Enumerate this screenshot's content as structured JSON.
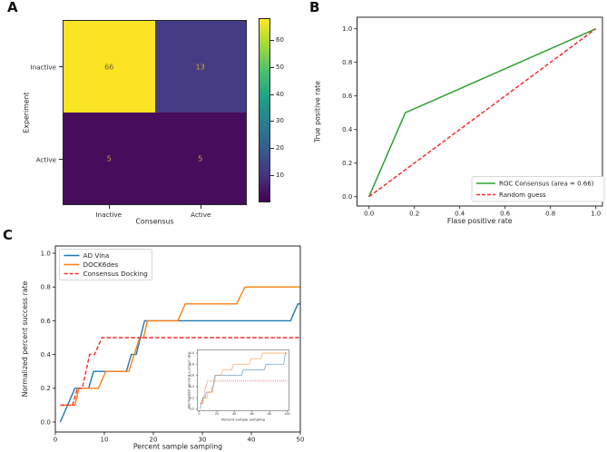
{
  "figure": {
    "panel_labels": [
      "A",
      "B",
      "C"
    ],
    "background": "#ffffff",
    "text_color": "#262626",
    "spine_color": "#262626"
  },
  "chart_data": [
    {
      "panel": "A",
      "type": "heatmap",
      "xlabel": "Consensus",
      "ylabel": "Experiment",
      "x_categories": [
        "Inactive",
        "Active"
      ],
      "y_categories": [
        "Inactive",
        "Active"
      ],
      "values": [
        [
          66,
          13
        ],
        [
          5,
          5
        ]
      ],
      "cell_colors": [
        [
          "#fbe423",
          "#443c84"
        ],
        [
          "#450d5c",
          "#450d5c"
        ]
      ],
      "value_text_colors": [
        [
          "#6b6333",
          "#d8ab2d"
        ],
        [
          "#d8ab2d",
          "#d8ab2d"
        ]
      ],
      "colorbar": {
        "vmin": 0,
        "vmax": 68,
        "tick_values": [
          10,
          20,
          30,
          40,
          50,
          60
        ],
        "tick_labels": [
          "10",
          "20",
          "30",
          "40",
          "50",
          "60"
        ],
        "gradient_bottom_to_top": [
          "#440154",
          "#46327e",
          "#365c8d",
          "#277f8e",
          "#1fa187",
          "#4ac16d",
          "#a0da39",
          "#fde725"
        ]
      }
    },
    {
      "panel": "B",
      "type": "line",
      "xlabel": "Flase positive rate",
      "ylabel": "True positive rate",
      "xtick_values": [
        0,
        0.2,
        0.4,
        0.6,
        0.8,
        1.0
      ],
      "xtick_labels": [
        "0.0",
        "0.2",
        "0.4",
        "0.6",
        "0.8",
        "1.0"
      ],
      "ytick_values": [
        0,
        0.2,
        0.4,
        0.6,
        0.8,
        1.0
      ],
      "ytick_labels": [
        "0.0",
        "0.2",
        "0.4",
        "0.6",
        "0.8",
        "1.0"
      ],
      "legend_position": "lower right",
      "series": [
        {
          "name": "ROC Consensus (area = 0.66)",
          "color": "#2ca02c",
          "style": "solid",
          "points": [
            [
              0,
              0
            ],
            [
              0.16,
              0.5
            ],
            [
              1,
              1
            ]
          ]
        },
        {
          "name": "Random guess",
          "color": "#fb2b2b",
          "style": "dashed",
          "points": [
            [
              0,
              0
            ],
            [
              1,
              1
            ]
          ]
        }
      ]
    },
    {
      "panel": "C",
      "type": "line",
      "xlabel": "Percent sample sampling",
      "ylabel": "Normalized percent success rate",
      "xtick_values": [
        0,
        10,
        20,
        30,
        40,
        50
      ],
      "xtick_labels": [
        "0",
        "10",
        "20",
        "30",
        "40",
        "50"
      ],
      "ytick_values": [
        0,
        0.2,
        0.4,
        0.6,
        0.8,
        1.0
      ],
      "ytick_labels": [
        "0.0",
        "0.2",
        "0.4",
        "0.6",
        "0.8",
        "1.0"
      ],
      "legend_position": "upper left",
      "series": [
        {
          "name": "AD Vina",
          "color": "#1f77b4",
          "style": "solid",
          "points": [
            [
              1,
              0
            ],
            [
              4,
              0.2
            ],
            [
              6.8,
              0.2
            ],
            [
              7.8,
              0.3
            ],
            [
              14.5,
              0.3
            ],
            [
              15.5,
              0.4
            ],
            [
              16.5,
              0.4
            ],
            [
              18.2,
              0.6
            ],
            [
              48,
              0.6
            ],
            [
              49.5,
              0.7
            ],
            [
              50,
              0.7
            ]
          ]
        },
        {
          "name": "DOCK6des",
          "color": "#ff7f0e",
          "style": "solid",
          "points": [
            [
              1,
              0.1
            ],
            [
              4,
              0.1
            ],
            [
              4.8,
              0.2
            ],
            [
              8.8,
              0.2
            ],
            [
              10.3,
              0.3
            ],
            [
              15,
              0.3
            ],
            [
              17.2,
              0.5
            ],
            [
              18,
              0.5
            ],
            [
              18.8,
              0.6
            ],
            [
              25,
              0.6
            ],
            [
              26.5,
              0.7
            ],
            [
              37,
              0.7
            ],
            [
              38.7,
              0.8
            ],
            [
              50,
              0.8
            ]
          ]
        },
        {
          "name": "Consensus Docking",
          "color": "#fb2b2b",
          "style": "dashed",
          "points": [
            [
              1,
              0.1
            ],
            [
              3.5,
              0.1
            ],
            [
              4.5,
              0.2
            ],
            [
              5.5,
              0.2
            ],
            [
              7,
              0.4
            ],
            [
              8,
              0.4
            ],
            [
              9.5,
              0.5
            ],
            [
              50,
              0.5
            ]
          ]
        }
      ],
      "inset": {
        "xlabel": "Percent sample sampling",
        "ylabel": "Normalized percent success rate",
        "xtick_values": [
          0,
          20,
          40,
          60,
          80,
          100
        ],
        "xtick_labels": [
          "0",
          "20",
          "40",
          "60",
          "80",
          "100"
        ],
        "ytick_values": [
          0,
          0.2,
          0.4,
          0.6,
          0.8,
          1.0
        ],
        "ytick_labels": [
          "0.0",
          "0.2",
          "0.4",
          "0.6",
          "0.8",
          "1.0"
        ],
        "series": [
          {
            "name": "AD Vina",
            "color": "#1f77b4",
            "style": "solid",
            "opacity": 0.55,
            "points": [
              [
                1,
                0
              ],
              [
                4,
                0.2
              ],
              [
                7,
                0.2
              ],
              [
                8,
                0.3
              ],
              [
                14,
                0.3
              ],
              [
                15,
                0.4
              ],
              [
                16,
                0.4
              ],
              [
                18,
                0.6
              ],
              [
                48,
                0.6
              ],
              [
                50,
                0.7
              ],
              [
                74,
                0.7
              ],
              [
                76,
                0.8
              ],
              [
                96,
                0.8
              ],
              [
                98,
                1.0
              ],
              [
                100,
                1.0
              ]
            ]
          },
          {
            "name": "DOCK6des",
            "color": "#ff7f0e",
            "style": "solid",
            "opacity": 0.55,
            "points": [
              [
                1,
                0.1
              ],
              [
                4,
                0.1
              ],
              [
                5,
                0.2
              ],
              [
                9,
                0.2
              ],
              [
                10,
                0.3
              ],
              [
                15,
                0.3
              ],
              [
                17,
                0.5
              ],
              [
                19,
                0.6
              ],
              [
                25,
                0.6
              ],
              [
                27,
                0.7
              ],
              [
                37,
                0.7
              ],
              [
                39,
                0.8
              ],
              [
                57,
                0.8
              ],
              [
                59,
                0.9
              ],
              [
                70,
                0.9
              ],
              [
                72,
                1.0
              ],
              [
                100,
                1.0
              ]
            ]
          },
          {
            "name": "Consensus Docking",
            "color": "#fb2b2b",
            "style": "dotted",
            "opacity": 0.9,
            "points": [
              [
                1,
                0.1
              ],
              [
                3.5,
                0.1
              ],
              [
                4.5,
                0.2
              ],
              [
                5.5,
                0.2
              ],
              [
                7,
                0.4
              ],
              [
                8,
                0.4
              ],
              [
                9.5,
                0.5
              ],
              [
                100,
                0.5
              ]
            ]
          }
        ]
      }
    }
  ]
}
